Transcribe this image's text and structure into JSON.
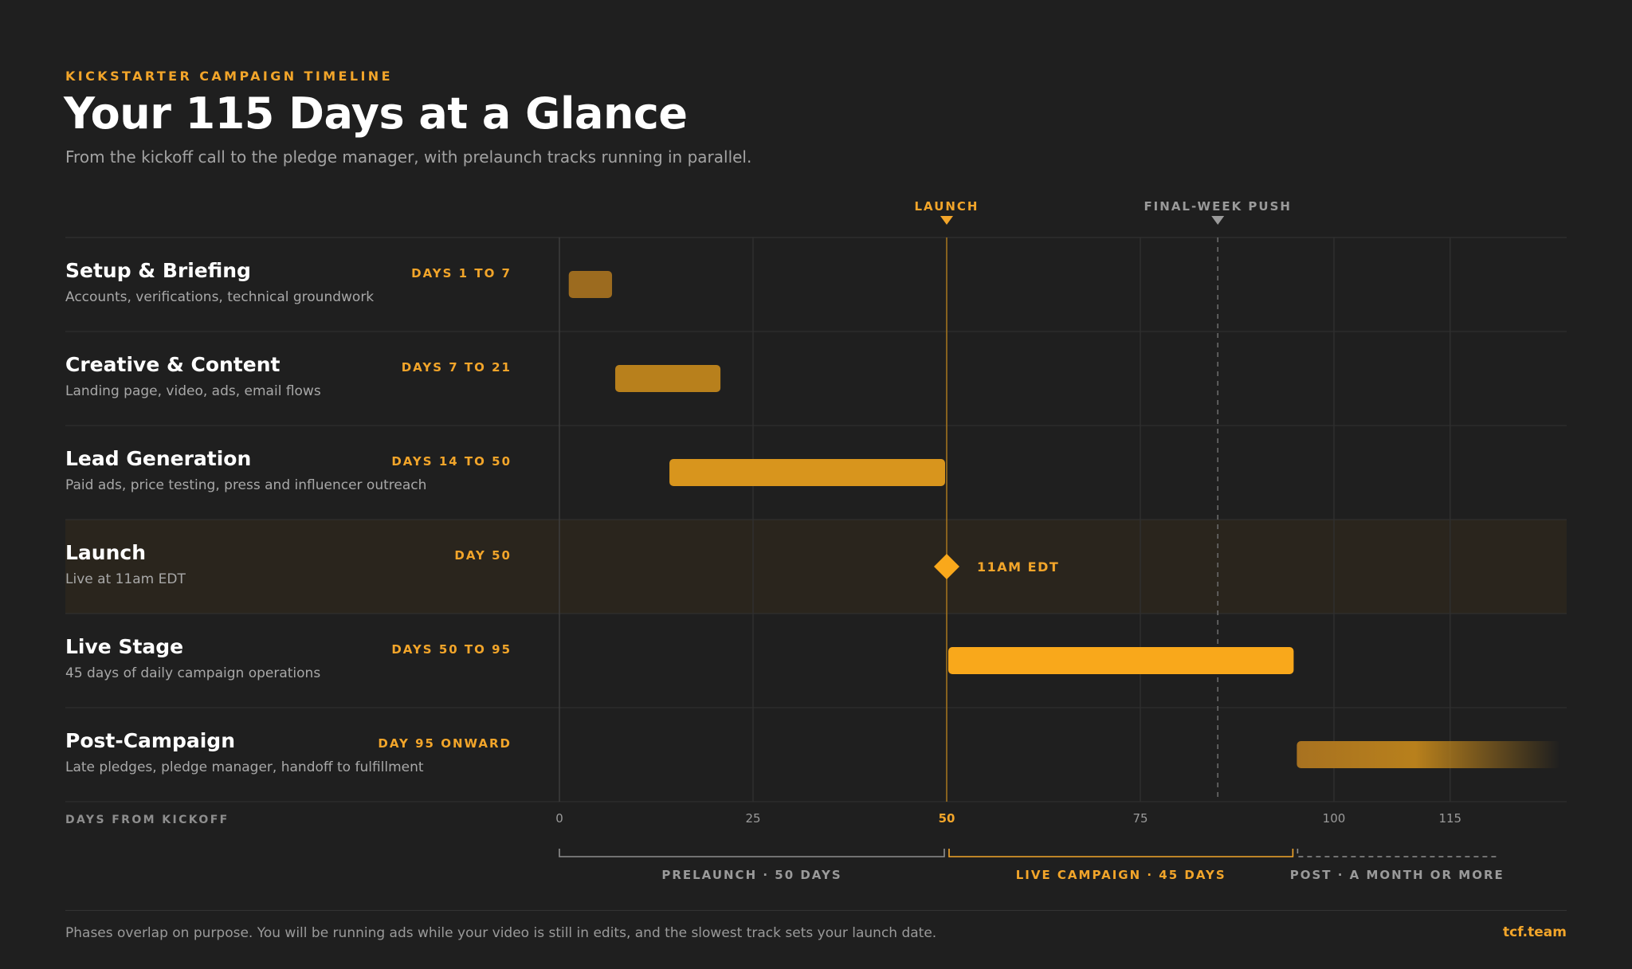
{
  "header": {
    "eyebrow": "KICKSTARTER CAMPAIGN TIMELINE",
    "title": "Your 115 Days at a Glance",
    "subtitle": "From the kickoff call to the pledge manager, with prelaunch tracks running in parallel."
  },
  "colors": {
    "accent": "#f9a81b",
    "background": "#1f1f1f",
    "muted_text": "#a3a3a3"
  },
  "chart_data": {
    "type": "bar",
    "subtype": "gantt-timeline",
    "x_axis": {
      "label": "DAYS FROM KICKOFF",
      "range": [
        0,
        130
      ],
      "ticks": [
        0,
        25,
        50,
        75,
        100,
        115
      ],
      "highlight_tick": 50
    },
    "rows": [
      {
        "name": "Setup & Briefing",
        "range_label": "DAYS 1 TO 7",
        "description": "Accounts, verifications, technical groundwork",
        "start": 1,
        "end": 7,
        "color": "#9c6b1f"
      },
      {
        "name": "Creative & Content",
        "range_label": "DAYS 7 TO 21",
        "description": "Landing page, video, ads, email flows",
        "start": 7,
        "end": 21,
        "color": "#b8801c"
      },
      {
        "name": "Lead Generation",
        "range_label": "DAYS 14 TO 50",
        "description": "Paid ads, price testing, press and influencer outreach",
        "start": 14,
        "end": 50,
        "color": "#d8951d"
      },
      {
        "name": "Launch",
        "range_label": "DAY 50",
        "description": "Live at 11am EDT",
        "milestone": 50,
        "milestone_label": "11AM EDT",
        "highlight": true,
        "color": "#f9a81b"
      },
      {
        "name": "Live Stage",
        "range_label": "DAYS 50 TO 95",
        "description": "45 days of daily campaign operations",
        "start": 50,
        "end": 95,
        "color": "#f9a81b"
      },
      {
        "name": "Post-Campaign",
        "range_label": "DAY 95 ONWARD",
        "description": "Late pledges, pledge manager, handoff to fulfillment",
        "start": 95,
        "end": 130,
        "open_ended": true,
        "color": "#a87220"
      }
    ],
    "markers": [
      {
        "label": "LAUNCH",
        "x": 50,
        "style": "solid",
        "color": "#f2a52a"
      },
      {
        "label": "FINAL-WEEK PUSH",
        "x": 85,
        "style": "dashed",
        "color": "#9a9a9a"
      }
    ],
    "phases": [
      {
        "label": "PRELAUNCH · 50 DAYS",
        "start": 0,
        "end": 50,
        "style": "solid",
        "color": "#8e8e8e"
      },
      {
        "label": "LIVE CAMPAIGN · 45 DAYS",
        "start": 50,
        "end": 95,
        "style": "solid",
        "color": "#f2a52a"
      },
      {
        "label": "POST · A MONTH OR MORE",
        "start": 95,
        "end": 121,
        "style": "dashed",
        "color": "#8e8e8e"
      }
    ]
  },
  "footer": {
    "note": "Phases overlap on purpose. You will be running ads while your video is still in edits, and the slowest track sets your launch date.",
    "brand": "tcf.team"
  }
}
